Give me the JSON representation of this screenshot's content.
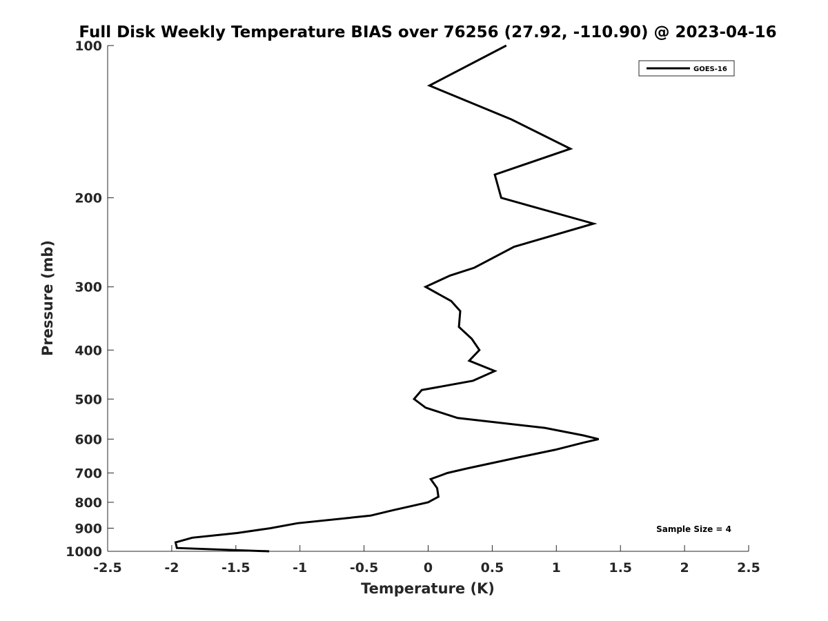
{
  "chart_data": {
    "type": "line",
    "title": "Full Disk Weekly Temperature BIAS over 76256 (27.92, -110.90) @ 2023-04-16",
    "xlabel": "Temperature (K)",
    "ylabel": "Pressure (mb)",
    "xlim": [
      -2.5,
      2.5
    ],
    "ylim": [
      1000,
      100
    ],
    "y_scale": "log",
    "y_inverted": true,
    "x_ticks": [
      -2.5,
      -2,
      -1.5,
      -1,
      -0.5,
      0,
      0.5,
      1,
      1.5,
      2,
      2.5
    ],
    "x_tick_labels": [
      "-2.5",
      "-2",
      "-1.5",
      "-1",
      "-0.5",
      "0",
      "0.5",
      "1",
      "1.5",
      "2",
      "2.5"
    ],
    "y_ticks": [
      100,
      200,
      300,
      400,
      500,
      600,
      700,
      800,
      900,
      1000
    ],
    "y_tick_labels": [
      "100",
      "200",
      "300",
      "400",
      "500",
      "600",
      "700",
      "800",
      "900",
      "1000"
    ],
    "grid": false,
    "legend_position": "top-right",
    "series": [
      {
        "name": "GOES-16",
        "color": "#000000",
        "points": [
          {
            "x": 0.61,
            "p": 100
          },
          {
            "x": 0.01,
            "p": 120
          },
          {
            "x": 0.65,
            "p": 140
          },
          {
            "x": 1.11,
            "p": 160
          },
          {
            "x": 0.52,
            "p": 180
          },
          {
            "x": 0.57,
            "p": 200
          },
          {
            "x": 1.29,
            "p": 225
          },
          {
            "x": 0.67,
            "p": 250
          },
          {
            "x": 0.36,
            "p": 275
          },
          {
            "x": 0.17,
            "p": 285
          },
          {
            "x": -0.02,
            "p": 300
          },
          {
            "x": 0.18,
            "p": 320
          },
          {
            "x": 0.25,
            "p": 335
          },
          {
            "x": 0.24,
            "p": 360
          },
          {
            "x": 0.34,
            "p": 380
          },
          {
            "x": 0.4,
            "p": 400
          },
          {
            "x": 0.32,
            "p": 420
          },
          {
            "x": 0.52,
            "p": 440
          },
          {
            "x": 0.35,
            "p": 460
          },
          {
            "x": -0.05,
            "p": 480
          },
          {
            "x": -0.11,
            "p": 500
          },
          {
            "x": -0.02,
            "p": 520
          },
          {
            "x": 0.23,
            "p": 545
          },
          {
            "x": 0.91,
            "p": 570
          },
          {
            "x": 1.21,
            "p": 590
          },
          {
            "x": 1.33,
            "p": 600
          },
          {
            "x": 1.21,
            "p": 610
          },
          {
            "x": 0.99,
            "p": 630
          },
          {
            "x": 0.73,
            "p": 650
          },
          {
            "x": 0.31,
            "p": 685
          },
          {
            "x": 0.15,
            "p": 700
          },
          {
            "x": 0.02,
            "p": 720
          },
          {
            "x": 0.07,
            "p": 750
          },
          {
            "x": 0.08,
            "p": 780
          },
          {
            "x": 0.0,
            "p": 800
          },
          {
            "x": -0.28,
            "p": 830
          },
          {
            "x": -0.45,
            "p": 850
          },
          {
            "x": -1.02,
            "p": 880
          },
          {
            "x": -1.23,
            "p": 900
          },
          {
            "x": -1.49,
            "p": 920
          },
          {
            "x": -1.84,
            "p": 940
          },
          {
            "x": -1.97,
            "p": 960
          },
          {
            "x": -1.96,
            "p": 985
          },
          {
            "x": -1.24,
            "p": 1000
          }
        ]
      }
    ],
    "annotations": [
      {
        "text": "Sample Size = 4",
        "position": "bottom-right"
      }
    ]
  }
}
